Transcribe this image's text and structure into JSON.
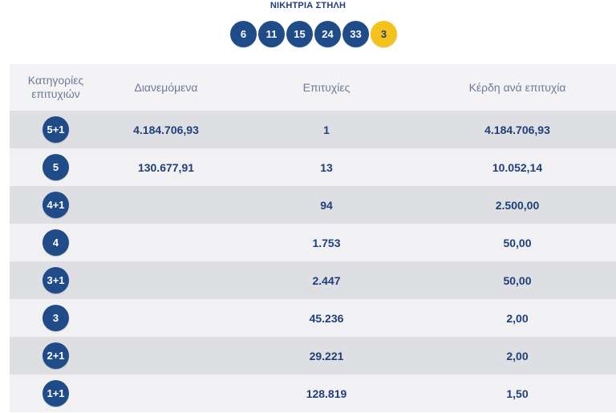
{
  "title": "ΝΙΚΗΤΡΙΑ ΣΤΗΛΗ",
  "winning_numbers": [
    "6",
    "11",
    "15",
    "24",
    "33"
  ],
  "bonus_number": "3",
  "colors": {
    "primary": "#1f4b89",
    "bonus": "#f5c21b",
    "text": "#1f3f7a",
    "row_light": "#f1f1f3",
    "row_dark": "#dedfe3"
  },
  "table": {
    "headers": {
      "category": "Κατηγορίες επιτυχιών",
      "distributed": "Διανεμόμενα",
      "winners": "Επιτυχίες",
      "prize_per_winner": "Κέρδη ανά επιτυχία"
    },
    "rows": [
      {
        "category": "5+1",
        "distributed": "4.184.706,93",
        "winners": "1",
        "prize": "4.184.706,93"
      },
      {
        "category": "5",
        "distributed": "130.677,91",
        "winners": "13",
        "prize": "10.052,14"
      },
      {
        "category": "4+1",
        "distributed": "",
        "winners": "94",
        "prize": "2.500,00"
      },
      {
        "category": "4",
        "distributed": "",
        "winners": "1.753",
        "prize": "50,00"
      },
      {
        "category": "3+1",
        "distributed": "",
        "winners": "2.447",
        "prize": "50,00"
      },
      {
        "category": "3",
        "distributed": "",
        "winners": "45.236",
        "prize": "2,00"
      },
      {
        "category": "2+1",
        "distributed": "",
        "winners": "29.221",
        "prize": "2,00"
      },
      {
        "category": "1+1",
        "distributed": "",
        "winners": "128.819",
        "prize": "1,50"
      }
    ]
  }
}
